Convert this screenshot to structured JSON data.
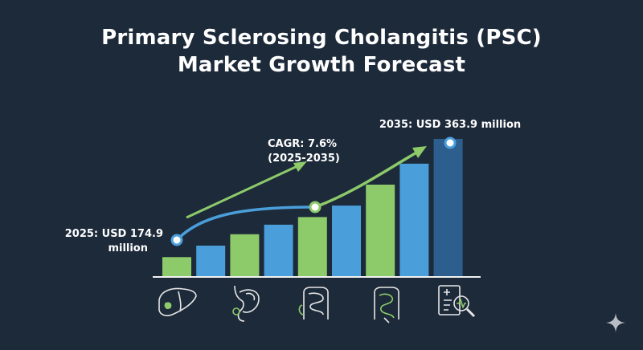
{
  "title_line1": "Primary Sclerosing Cholangitis (PSC)",
  "title_line2": "Market Growth Forecast",
  "chart_data": {
    "type": "bar",
    "series": [
      {
        "values": [
          1,
          1.6,
          2.2,
          2.7,
          3.1,
          3.7,
          4.8,
          5.9,
          7.2
        ]
      }
    ],
    "bar_colors": [
      "#8dca6a",
      "#4a9fdb",
      "#8dca6a",
      "#4a9fdb",
      "#8dca6a",
      "#4a9fdb",
      "#8dca6a",
      "#4a9fdb",
      "#2d5f8e"
    ],
    "ylim": [
      0,
      8
    ],
    "annotations": {
      "start_line1": "2025: USD 174.9",
      "start_line2": "million",
      "end": "2035: USD 363.9 million",
      "cagr_line1": "CAGR: 7.6%",
      "cagr_line2": "(2025-2035)"
    },
    "colors": {
      "green": "#8dca6a",
      "blue": "#4a9fdb",
      "navy": "#2d5f8e",
      "background": "#1d2a3a"
    }
  },
  "icons": [
    "liver-icon",
    "stomach-icon",
    "intestine-icon",
    "colon-icon",
    "medical-report-magnifier-icon"
  ]
}
